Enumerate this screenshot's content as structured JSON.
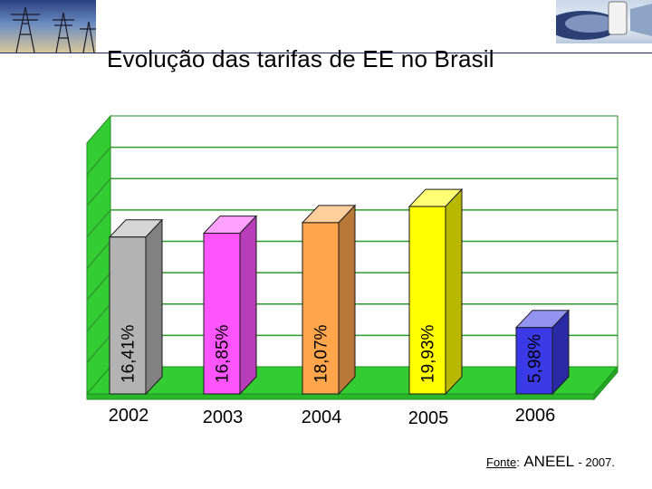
{
  "title": "Evolução das tarifas de EE no Brasil",
  "chart_data": {
    "type": "bar",
    "categories": [
      "2002",
      "2003",
      "2004",
      "2005",
      "2006"
    ],
    "values": [
      16.41,
      16.85,
      18.07,
      19.93,
      5.98
    ],
    "data_labels": [
      "16,41%",
      "16,85%",
      "18,07%",
      "19,93%",
      "5,98%"
    ],
    "unit": "%",
    "grid": true,
    "legend": "none",
    "bar_colors": [
      "#b3b3b3",
      "#ff55ff",
      "#ffa64d",
      "#ffff00",
      "#3a3ae8"
    ],
    "frame_color": "#33cc33"
  },
  "source": {
    "label": "Fonte",
    "sep": ":",
    "org": "ANEEL",
    "year": "- 2007."
  },
  "icons": {
    "left": "transmission-tower-photo-icon",
    "right": "gas-pipeline-photo-icon"
  }
}
